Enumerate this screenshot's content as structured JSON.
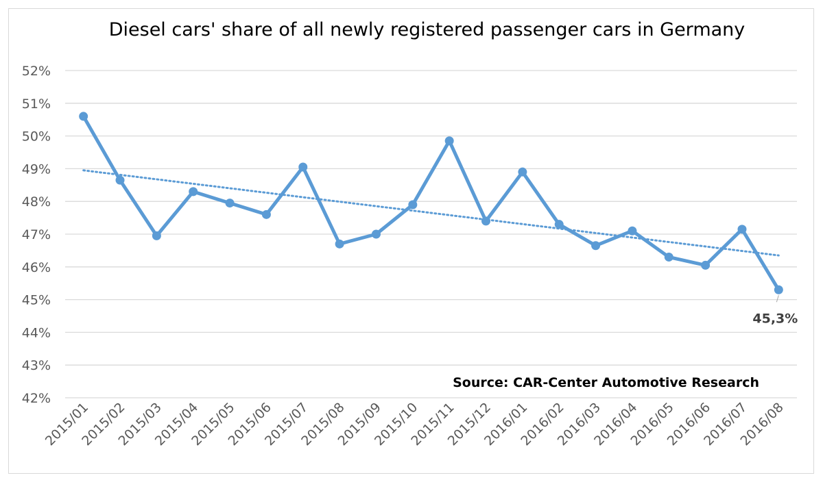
{
  "chart_data": {
    "type": "line",
    "title": "Diesel cars' share of all newly registered passenger cars in Germany",
    "xlabel": "",
    "ylabel": "",
    "categories": [
      "2015/01",
      "2015/02",
      "2015/03",
      "2015/04",
      "2015/05",
      "2015/06",
      "2015/07",
      "2015/08",
      "2015/09",
      "2015/10",
      "2015/11",
      "2015/12",
      "2016/01",
      "2016/02",
      "2016/03",
      "2016/04",
      "2016/05",
      "2016/06",
      "2016/07",
      "2016/08"
    ],
    "series": [
      {
        "values": [
          50.6,
          48.65,
          46.95,
          48.3,
          47.95,
          47.6,
          49.05,
          46.7,
          47.0,
          47.9,
          49.85,
          47.4,
          48.9,
          47.3,
          46.65,
          47.1,
          46.3,
          46.05,
          47.15,
          45.3
        ],
        "color": "#5b9bd5"
      }
    ],
    "trendline": {
      "type": "linear",
      "style": "dotted",
      "start": 48.95,
      "end": 46.35,
      "color": "#5b9bd5"
    },
    "ylim": [
      42,
      52
    ],
    "yticks": [
      "42%",
      "43%",
      "44%",
      "45%",
      "46%",
      "47%",
      "48%",
      "49%",
      "50%",
      "51%",
      "52%"
    ],
    "grid": true,
    "legend": "none",
    "data_label": {
      "index": 19,
      "text": "45,3%"
    },
    "annotation": "Source: CAR-Center Automotive Research"
  }
}
